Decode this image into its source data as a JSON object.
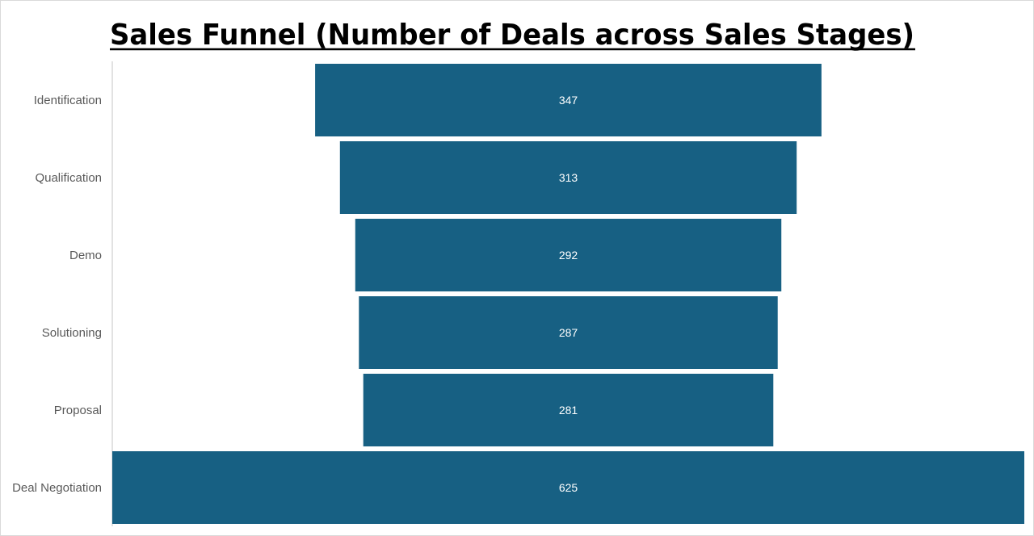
{
  "chart_data": {
    "type": "funnel",
    "title": "Sales Funnel (Number of Deals across Sales Stages)",
    "categories": [
      "Identification",
      "Qualification",
      "Demo",
      "Solutioning",
      "Proposal",
      "Deal Negotiation"
    ],
    "values": [
      347,
      313,
      292,
      287,
      281,
      625
    ],
    "data_labels": [
      "347",
      "313",
      "292",
      "287",
      "281",
      "625"
    ],
    "bar_color": "#176083",
    "grid": false,
    "legend": "none"
  }
}
